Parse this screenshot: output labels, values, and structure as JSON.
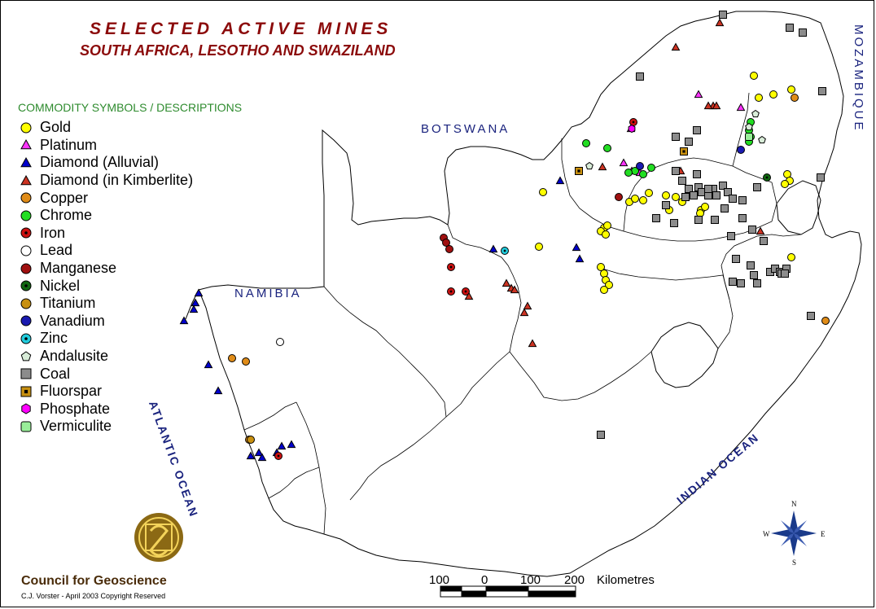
{
  "title": "SELECTED ACTIVE MINES",
  "subtitle": "SOUTH AFRICA, LESOTHO AND SWAZILAND",
  "legend": {
    "heading": "COMMODITY SYMBOLS / DESCRIPTIONS",
    "items": [
      {
        "label": "Gold",
        "shape": "circle",
        "color": "#ffff00"
      },
      {
        "label": "Platinum",
        "shape": "triangle",
        "color": "#ff33ff"
      },
      {
        "label": "Diamond (Alluvial)",
        "shape": "triangle",
        "color": "#0000cc"
      },
      {
        "label": "Diamond (in Kimberlite)",
        "shape": "triangle",
        "color": "#cc3322"
      },
      {
        "label": "Copper",
        "shape": "circle",
        "color": "#e08c18"
      },
      {
        "label": "Chrome",
        "shape": "circle",
        "color": "#22dd22"
      },
      {
        "label": "Iron",
        "shape": "dotcircle",
        "color": "#cc1111"
      },
      {
        "label": "Lead",
        "shape": "circle",
        "color": "#ffffff"
      },
      {
        "label": "Manganese",
        "shape": "circle",
        "color": "#a01010"
      },
      {
        "label": "Nickel",
        "shape": "dotcircle",
        "color": "#116611"
      },
      {
        "label": "Titanium",
        "shape": "circle",
        "color": "#c89010"
      },
      {
        "label": "Vanadium",
        "shape": "circle",
        "color": "#1a1ab0"
      },
      {
        "label": "Zinc",
        "shape": "dotcircle",
        "color": "#22ccdd"
      },
      {
        "label": "Andalusite",
        "shape": "pentagon",
        "color": "#d8ecd8"
      },
      {
        "label": "Coal",
        "shape": "square",
        "color": "#8c8c8c"
      },
      {
        "label": "Fluorspar",
        "shape": "dotsquare",
        "color": "#c89010"
      },
      {
        "label": "Phosphate",
        "shape": "hexagon",
        "color": "#ff00ff"
      },
      {
        "label": "Vermiculite",
        "shape": "roundsquare",
        "color": "#99ee99"
      }
    ]
  },
  "labels": {
    "botswana": "BOTSWANA",
    "namibia": "NAMIBIA",
    "mozambique": "MOZAMBIQUE",
    "atlantic": "ATLANTIC OCEAN",
    "indian": "INDIAN OCEAN"
  },
  "compass": {
    "n": "N",
    "s": "S",
    "e": "E",
    "w": "W"
  },
  "scale": {
    "ticks": [
      "100",
      "0",
      "100",
      "200"
    ],
    "unit": "Kilometres"
  },
  "organization": "Council for Geoscience",
  "credit": "C.J. Vorster  -  April 2003  Copyright Reserved",
  "colors": {
    "title": "#8b0a0a",
    "legend_heading": "#2e8b2e",
    "labels": "#1a237e",
    "logo": "#8b6914"
  }
}
